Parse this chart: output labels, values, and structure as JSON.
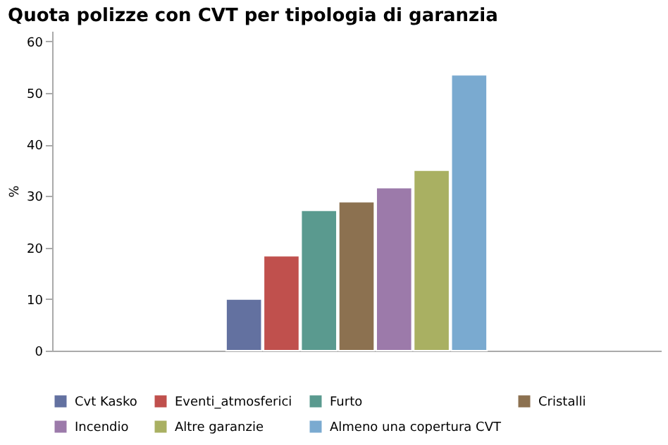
{
  "chart_data": {
    "type": "bar",
    "title": "Quota polizze con CVT per tipologia di garanzia",
    "ylabel": "%",
    "categories": [
      null
    ],
    "series": [
      {
        "name": "Cvt Kasko",
        "color": "#6371a0",
        "values": [
          10.0
        ]
      },
      {
        "name": "Eventi_atmosferici",
        "color": "#c0504d",
        "values": [
          18.4
        ]
      },
      {
        "name": "Furto",
        "color": "#5a9a8f",
        "values": [
          27.2
        ]
      },
      {
        "name": "Cristalli",
        "color": "#8c7150",
        "values": [
          28.9
        ]
      },
      {
        "name": "Incendio",
        "color": "#9c7aaa",
        "values": [
          31.6
        ]
      },
      {
        "name": "Altre garanzie",
        "color": "#a9b062",
        "values": [
          35.0
        ]
      },
      {
        "name": "Almeno una copertura CVT",
        "color": "#7aaad0",
        "values": [
          53.5
        ]
      }
    ],
    "ylim": [
      0,
      62
    ],
    "yticks": [
      0,
      10,
      20,
      30,
      40,
      50,
      60
    ],
    "grid": false,
    "legend": "bottom"
  }
}
